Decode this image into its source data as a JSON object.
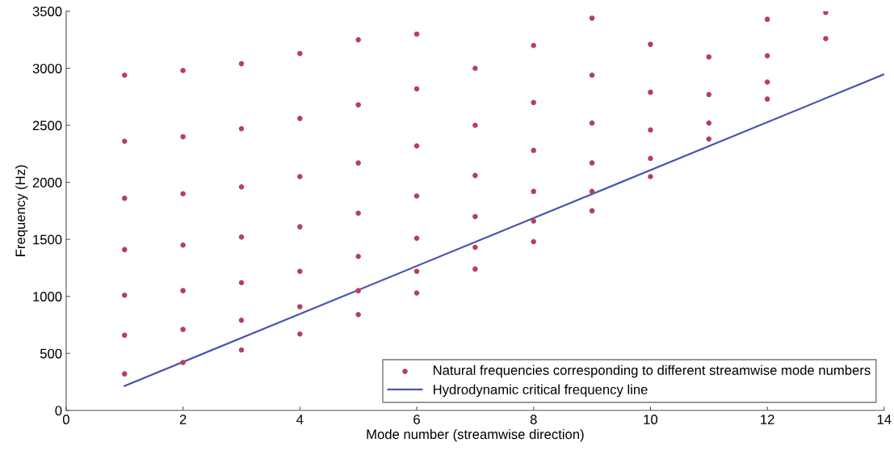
{
  "chart_data": {
    "type": "scatter",
    "xlabel": "Mode number (streamwise direction)",
    "ylabel": "Frequency (Hz)",
    "xlim": [
      0,
      14
    ],
    "xticks": [
      0,
      2,
      4,
      6,
      8,
      10,
      12,
      14
    ],
    "ylim": [
      0,
      3500
    ],
    "yticks": [
      0,
      500,
      1000,
      1500,
      2000,
      2500,
      3000,
      3500
    ],
    "grid": false,
    "legend": "bottom right",
    "marker": "circle",
    "series": [
      {
        "name": "Natural frequencies corresponding to different streamwise mode numbers",
        "color": "#b5405a",
        "x": [
          1,
          1,
          1,
          1,
          1,
          1,
          1,
          2,
          2,
          2,
          2,
          2,
          2,
          2,
          3,
          3,
          3,
          3,
          3,
          3,
          3,
          4,
          4,
          4,
          4,
          4,
          4,
          4,
          5,
          5,
          5,
          5,
          5,
          5,
          5,
          6,
          6,
          6,
          6,
          6,
          6,
          6,
          7,
          7,
          7,
          7,
          7,
          7,
          8,
          8,
          8,
          8,
          8,
          8,
          9,
          9,
          9,
          9,
          9,
          9,
          10,
          10,
          10,
          10,
          10,
          11,
          11,
          11,
          11,
          12,
          12,
          12,
          12,
          13,
          13
        ],
        "values": [
          2940,
          2360,
          1860,
          1410,
          1010,
          660,
          320,
          2980,
          2400,
          1900,
          1450,
          1050,
          710,
          420,
          3040,
          2470,
          1960,
          1520,
          1120,
          790,
          530,
          3130,
          2560,
          2050,
          1610,
          1220,
          910,
          670,
          3250,
          2680,
          2170,
          1730,
          1350,
          1050,
          840,
          3300,
          2820,
          2320,
          1880,
          1510,
          1220,
          1030,
          3000,
          2500,
          2060,
          1700,
          1430,
          1240,
          3200,
          2700,
          2280,
          1920,
          1660,
          1480,
          3440,
          2940,
          2520,
          2170,
          1920,
          1750,
          3210,
          2790,
          2460,
          2210,
          2050,
          3100,
          2770,
          2520,
          2380,
          3430,
          3110,
          2880,
          2730,
          3490,
          3260
        ]
      },
      {
        "name": "Hydrodynamic critical frequency line",
        "type": "line",
        "color": "#4a55b0",
        "marker": "none",
        "line_style": "solid",
        "x": [
          1,
          14
        ],
        "values": [
          215,
          2948
        ]
      }
    ]
  }
}
